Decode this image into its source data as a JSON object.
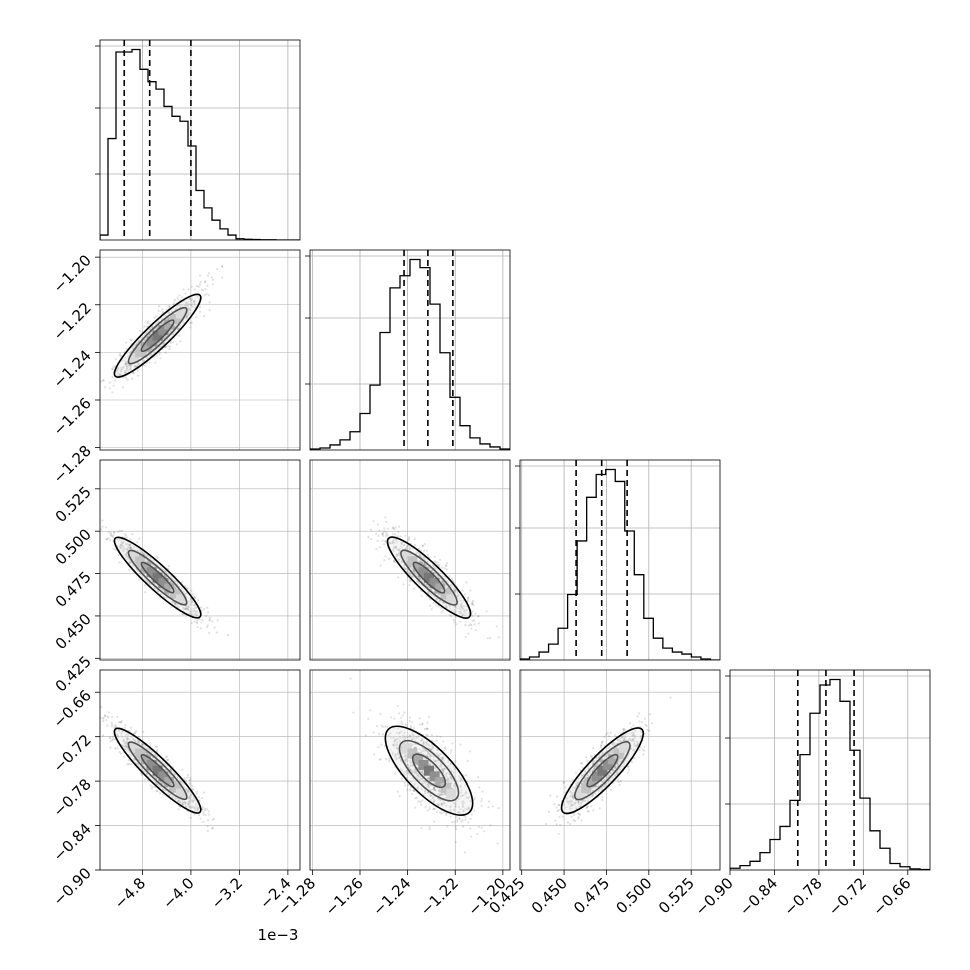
{
  "figure": {
    "offset_label": "1e−3"
  },
  "chart_data": {
    "type": "corner",
    "n_params": 4,
    "grid": true,
    "colors": {
      "line": "#000000",
      "grid": "#b0b0b0",
      "hist_fill": "none"
    },
    "params": [
      {
        "range": [
          -5.5,
          -2.2
        ],
        "ticks": [
          -4.8,
          -4.0,
          -3.2,
          -2.4
        ],
        "tick_labels": [
          "−4.8",
          "−4.0",
          "−3.2",
          "−2.4"
        ],
        "quantiles": [
          -5.1,
          -4.68,
          -4.0
        ]
      },
      {
        "range": [
          -1.281,
          -1.197
        ],
        "ticks": [
          -1.28,
          -1.26,
          -1.24,
          -1.22,
          -1.2
        ],
        "tick_labels": [
          "−1.28",
          "−1.26",
          "−1.24",
          "−1.22",
          "−1.20"
        ],
        "quantiles": [
          -1.2415,
          -1.2315,
          -1.221
        ]
      },
      {
        "range": [
          0.424,
          0.542
        ],
        "ticks": [
          0.425,
          0.45,
          0.475,
          0.5,
          0.525
        ],
        "tick_labels": [
          "0.425",
          "0.450",
          "0.475",
          "0.500",
          "0.525"
        ],
        "quantiles": [
          0.4571,
          0.4722,
          0.4872
        ]
      },
      {
        "range": [
          -0.9,
          -0.63
        ],
        "ticks": [
          -0.9,
          -0.84,
          -0.78,
          -0.72,
          -0.66
        ],
        "tick_labels": [
          "−0.90",
          "−0.84",
          "−0.78",
          "−0.72",
          "−0.66"
        ],
        "quantiles": [
          -0.8085,
          -0.7705,
          -0.7325
        ]
      }
    ],
    "histograms": [
      [
        20,
        410,
        760,
        760,
        770,
        690,
        640,
        610,
        540,
        500,
        480,
        380,
        200,
        130,
        80,
        45,
        20,
        5,
        3,
        2,
        1,
        1,
        0,
        0,
        0
      ],
      [
        5,
        10,
        25,
        50,
        90,
        180,
        320,
        580,
        800,
        860,
        940,
        900,
        720,
        480,
        260,
        120,
        60,
        30,
        15,
        5
      ],
      [
        5,
        15,
        40,
        80,
        160,
        330,
        600,
        820,
        935,
        960,
        900,
        650,
        430,
        210,
        110,
        60,
        40,
        30,
        15,
        5,
        0
      ],
      [
        8,
        20,
        40,
        80,
        140,
        200,
        320,
        530,
        720,
        850,
        875,
        775,
        550,
        330,
        180,
        100,
        30,
        15,
        5,
        2
      ]
    ],
    "pairs": [
      {
        "i": 1,
        "j": 0,
        "center": [
          -4.55,
          -1.233
        ],
        "sd": [
          0.35,
          0.0085
        ],
        "rho": 0.93
      },
      {
        "i": 2,
        "j": 0,
        "center": [
          -4.55,
          0.4726
        ],
        "sd": [
          0.35,
          0.0116
        ],
        "rho": -0.95
      },
      {
        "i": 2,
        "j": 1,
        "center": [
          -1.231,
          0.4726
        ],
        "sd": [
          0.0085,
          0.0116
        ],
        "rho": -0.9
      },
      {
        "i": 3,
        "j": 0,
        "center": [
          -4.55,
          -0.766
        ],
        "sd": [
          0.35,
          0.028
        ],
        "rho": -0.93
      },
      {
        "i": 3,
        "j": 1,
        "center": [
          -1.231,
          -0.766
        ],
        "sd": [
          0.0085,
          0.028
        ],
        "rho": -0.7
      },
      {
        "i": 3,
        "j": 2,
        "center": [
          0.4726,
          -0.766
        ],
        "sd": [
          0.0116,
          0.028
        ],
        "rho": 0.88
      }
    ]
  }
}
